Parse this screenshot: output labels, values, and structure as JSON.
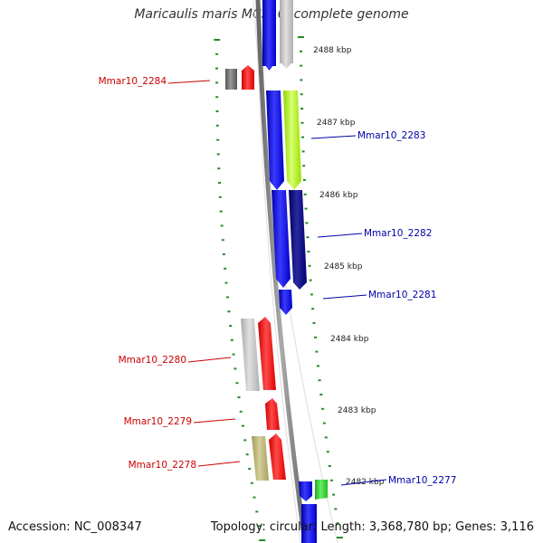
{
  "title": "Maricaulis maris MCS10, complete genome",
  "accession": "Accession: NC_008347",
  "topology": "Topology: circular; Length: 3,368,780 bp; Genes: 3,116",
  "colors": {
    "reverse_gene_label": "#cc0000",
    "forward_gene_label": "#0000aa",
    "tick": "#2a8a2a",
    "backbone": "#888888"
  },
  "kbp_ticks": [
    "2488 kbp",
    "2487 kbp",
    "2486 kbp",
    "2485 kbp",
    "2484 kbp",
    "2483 kbp",
    "2482 kbp"
  ],
  "gene_labels": [
    {
      "text": "Mmar10_2284",
      "strand": "reverse"
    },
    {
      "text": "Mmar10_2283",
      "strand": "forward"
    },
    {
      "text": "Mmar10_2282",
      "strand": "forward"
    },
    {
      "text": "Mmar10_2281",
      "strand": "forward"
    },
    {
      "text": "Mmar10_2280",
      "strand": "reverse"
    },
    {
      "text": "Mmar10_2279",
      "strand": "reverse"
    },
    {
      "text": "Mmar10_2278",
      "strand": "reverse"
    },
    {
      "text": "Mmar10_2277",
      "strand": "forward"
    }
  ]
}
